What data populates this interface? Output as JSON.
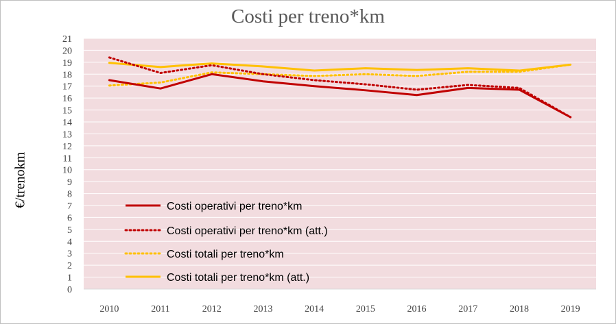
{
  "chart_data": {
    "type": "line",
    "title": "Costi per treno*km",
    "ylabel": "€/trenokm",
    "xlabel": "",
    "categories": [
      "2010",
      "2011",
      "2012",
      "2013",
      "2014",
      "2015",
      "2016",
      "2017",
      "2018",
      "2019"
    ],
    "ylim": [
      0,
      21
    ],
    "yticks": [
      0,
      1,
      2,
      3,
      4,
      5,
      6,
      7,
      8,
      9,
      10,
      11,
      12,
      13,
      14,
      15,
      16,
      17,
      18,
      19,
      20,
      21
    ],
    "grid": "horizontal",
    "legend_position": "inside-bottom-left",
    "plot_background": "#f2dcdf",
    "series": [
      {
        "name": "Costi operativi per treno*km",
        "color": "#c00000",
        "style": "solid",
        "values": [
          17.5,
          16.8,
          18.0,
          17.4,
          17.0,
          16.65,
          16.25,
          16.85,
          16.7,
          14.4
        ]
      },
      {
        "name": "Costi operativi per treno*km (att.)",
        "color": "#c00000",
        "style": "dotted",
        "values": [
          19.4,
          18.1,
          18.75,
          18.0,
          17.5,
          17.15,
          16.7,
          17.1,
          16.85,
          14.4
        ]
      },
      {
        "name": "Costi totali per treno*km",
        "color": "#ffc000",
        "style": "dotted",
        "values": [
          17.05,
          17.3,
          18.15,
          18.0,
          17.85,
          18.0,
          17.85,
          18.2,
          18.2,
          18.8
        ]
      },
      {
        "name": "Costi totali per treno*km (att.)",
        "color": "#ffc000",
        "style": "solid",
        "values": [
          18.95,
          18.6,
          18.9,
          18.65,
          18.3,
          18.5,
          18.35,
          18.5,
          18.3,
          18.8
        ]
      }
    ]
  }
}
